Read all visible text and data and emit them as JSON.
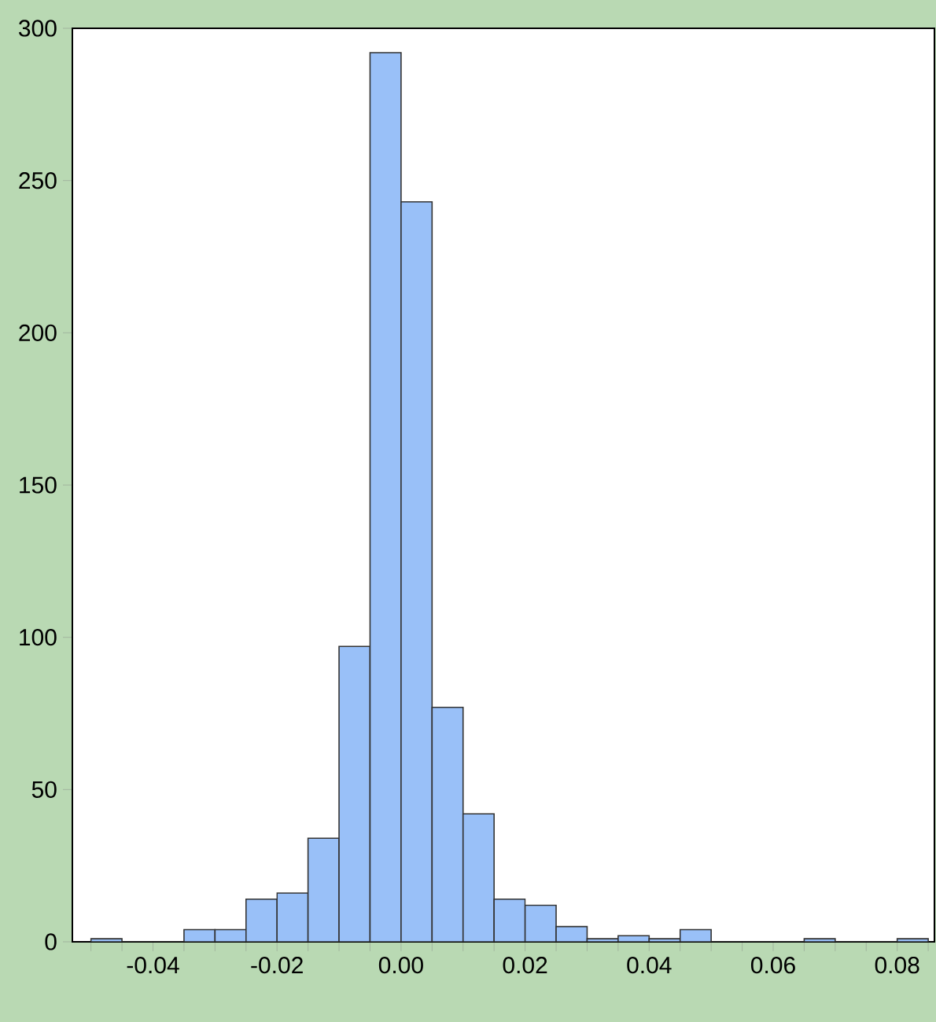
{
  "chart_data": {
    "type": "histogram",
    "bins": [
      -0.05,
      -0.045,
      -0.04,
      -0.035,
      -0.03,
      -0.025,
      -0.02,
      -0.015,
      -0.01,
      -0.005,
      0.0,
      0.005,
      0.01,
      0.015,
      0.02,
      0.025,
      0.03,
      0.035,
      0.04,
      0.045,
      0.05,
      0.055,
      0.06,
      0.065,
      0.07,
      0.075,
      0.08,
      0.085
    ],
    "values": [
      1,
      0,
      0,
      4,
      4,
      14,
      16,
      34,
      97,
      292,
      243,
      77,
      42,
      14,
      12,
      5,
      1,
      2,
      1,
      4,
      0,
      0,
      0,
      1,
      0,
      0,
      1
    ],
    "color": "#99c0f8",
    "xlim": [
      -0.053,
      0.086
    ],
    "ylim": [
      0,
      300
    ],
    "xticks": [
      {
        "value": -0.05,
        "label": null
      },
      {
        "value": -0.045,
        "label": null
      },
      "-0.04",
      {
        "value": -0.035,
        "label": null
      },
      {
        "value": -0.03,
        "label": null
      },
      {
        "value": -0.025,
        "label": null
      },
      {
        "value": -0.02,
        "label": "-0.02"
      },
      {
        "value": -0.015,
        "label": null
      },
      {
        "value": -0.01,
        "label": null
      },
      {
        "value": -0.005,
        "label": null
      },
      {
        "value": 0.0,
        "label": "0.00"
      },
      {
        "value": 0.005,
        "label": null
      },
      {
        "value": 0.01,
        "label": null
      },
      {
        "value": 0.015,
        "label": null
      },
      {
        "value": 0.02,
        "label": "0.02"
      },
      {
        "value": 0.025,
        "label": null
      },
      {
        "value": 0.03,
        "label": null
      },
      {
        "value": 0.035,
        "label": null
      },
      {
        "value": 0.04,
        "label": "0.04"
      },
      {
        "value": 0.045,
        "label": null
      },
      {
        "value": 0.05,
        "label": null
      },
      {
        "value": 0.055,
        "label": null
      },
      {
        "value": 0.06,
        "label": "0.06"
      },
      {
        "value": 0.065,
        "label": null
      },
      {
        "value": 0.07,
        "label": null
      },
      {
        "value": 0.075,
        "label": null
      },
      {
        "value": 0.08,
        "label": "0.08"
      },
      {
        "value": 0.085,
        "label": null
      }
    ],
    "yticks": [
      0,
      50,
      100,
      150,
      200,
      250,
      300
    ],
    "grid": false
  }
}
